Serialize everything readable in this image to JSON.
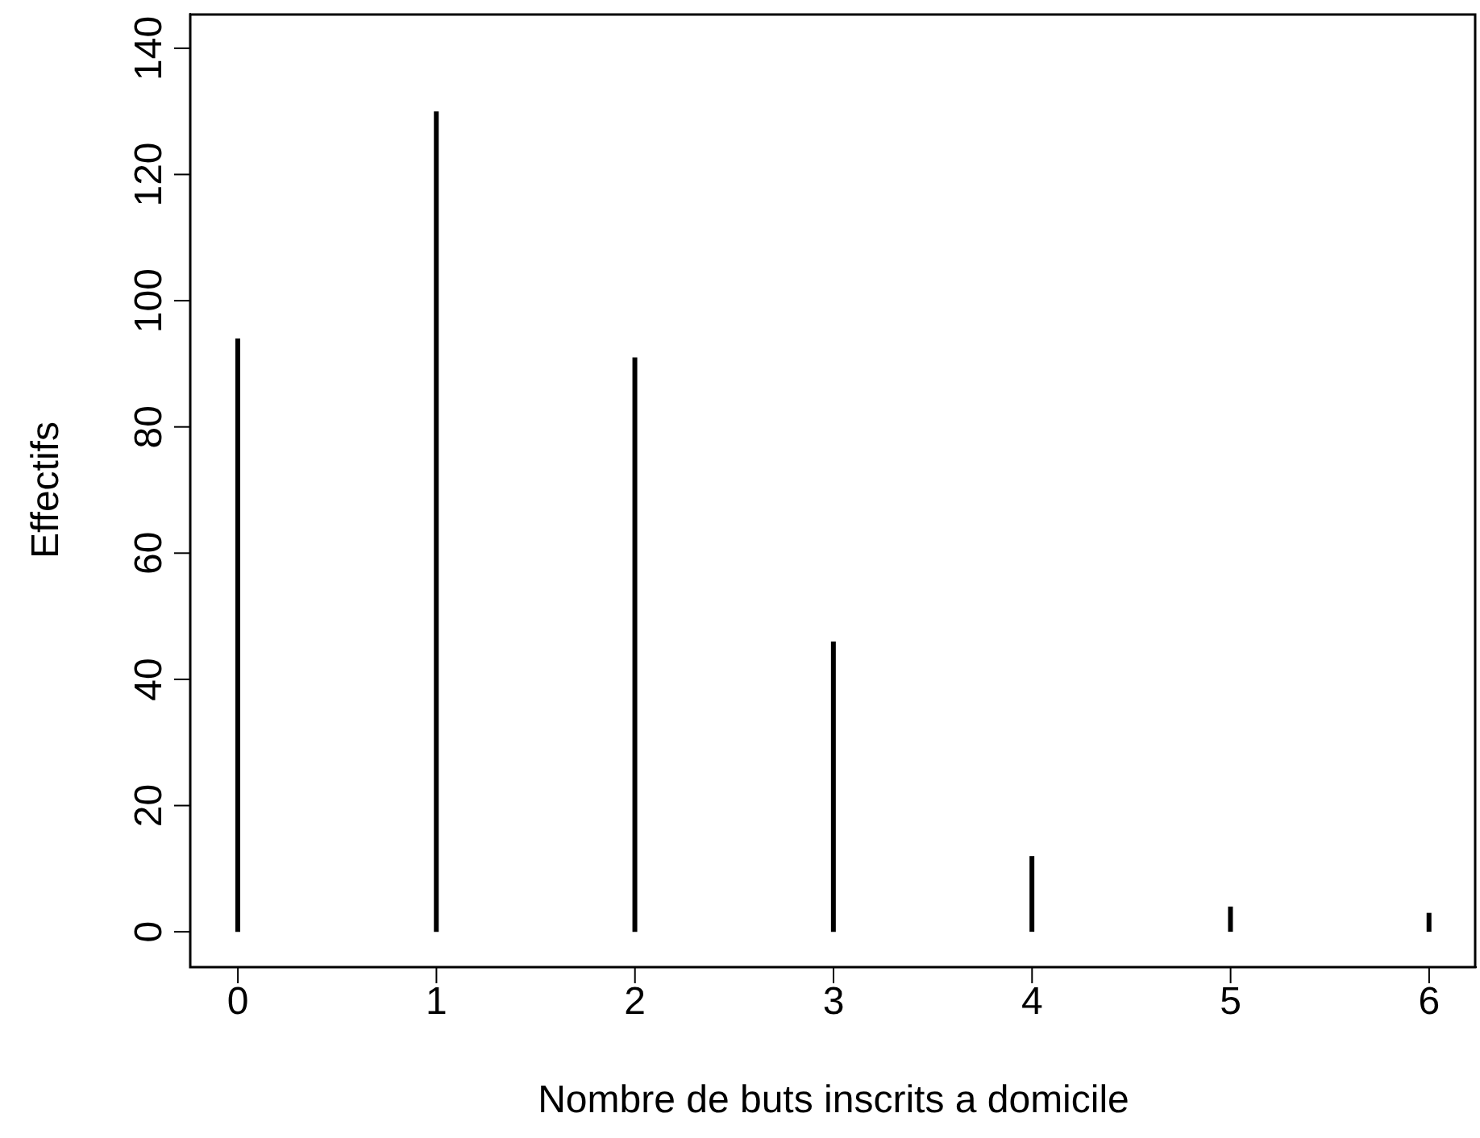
{
  "chart_data": {
    "type": "bar",
    "xlabel": "Nombre de buts inscrits a domicile",
    "ylabel": "Effectifs",
    "x": [
      0,
      1,
      2,
      3,
      4,
      5,
      6
    ],
    "values": [
      94,
      130,
      91,
      46,
      12,
      4,
      3
    ],
    "color": "#000000",
    "xlim": [
      -0.24,
      6.24
    ],
    "xticks": [
      0,
      1,
      2,
      3,
      4,
      5,
      6
    ],
    "ylim": [
      -5.6,
      145.6
    ],
    "yticks": [
      0,
      20,
      40,
      60,
      80,
      100,
      120,
      140
    ],
    "grid": false,
    "legend": false
  }
}
